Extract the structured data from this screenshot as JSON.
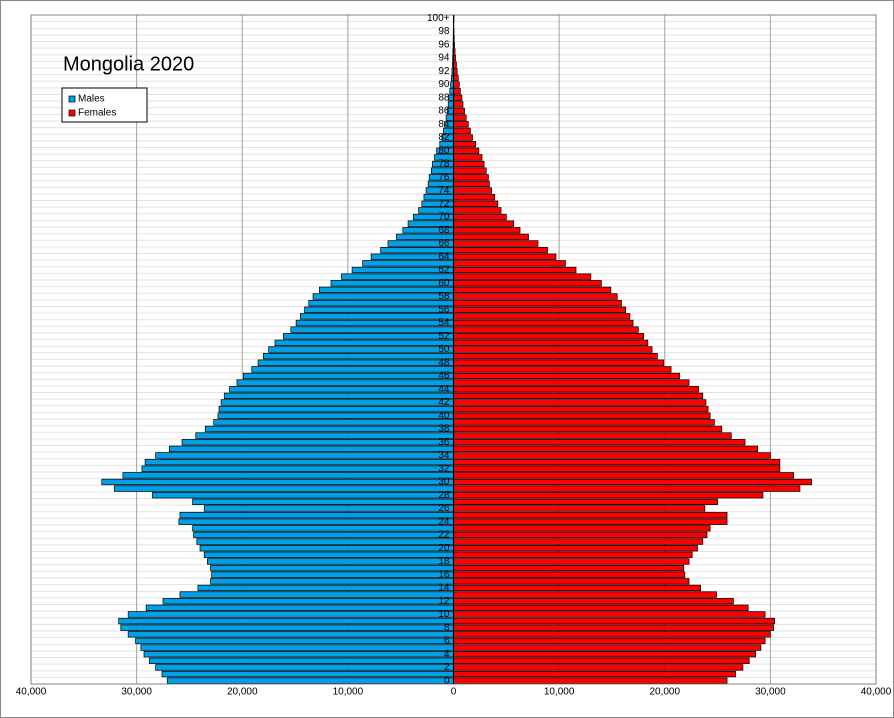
{
  "chart_data": {
    "type": "pyramid",
    "title": "Mongolia 2020",
    "categories": [
      "0",
      null,
      "2",
      null,
      "4",
      null,
      "6",
      null,
      "8",
      null,
      "10",
      null,
      "12",
      null,
      "14",
      null,
      "16",
      null,
      "18",
      null,
      "20",
      null,
      "22",
      null,
      "24",
      null,
      "26",
      null,
      "28",
      null,
      "30",
      null,
      "32",
      null,
      "34",
      null,
      "36",
      null,
      "38",
      null,
      "40",
      null,
      "42",
      null,
      "44",
      null,
      "46",
      null,
      "48",
      null,
      "50",
      null,
      "52",
      null,
      "54",
      null,
      "56",
      null,
      "58",
      null,
      "60",
      null,
      "62",
      null,
      "64",
      null,
      "66",
      null,
      "68",
      null,
      "70",
      null,
      "72",
      null,
      "74",
      null,
      "76",
      null,
      "78",
      null,
      "80",
      null,
      "82",
      null,
      "84",
      null,
      "86",
      null,
      "88",
      null,
      "90",
      null,
      "92",
      null,
      "94",
      null,
      "96",
      null,
      "98",
      null,
      "100+"
    ],
    "series": [
      {
        "name": "Males",
        "color": "#00a0e8",
        "side": "left",
        "values": [
          27100,
          27600,
          28200,
          28800,
          29300,
          29600,
          30100,
          30800,
          31500,
          31700,
          30800,
          29100,
          27500,
          25900,
          24200,
          23000,
          22900,
          23000,
          23300,
          23600,
          24000,
          24300,
          24600,
          24700,
          26000,
          25900,
          23600,
          24700,
          28500,
          32100,
          33300,
          31300,
          29500,
          29200,
          28200,
          26900,
          25700,
          24400,
          23500,
          22700,
          22300,
          22200,
          22000,
          21700,
          21200,
          20500,
          19900,
          19100,
          18500,
          18000,
          17500,
          16900,
          16100,
          15400,
          14900,
          14500,
          14100,
          13700,
          13300,
          12700,
          11600,
          10600,
          9600,
          8600,
          7800,
          6900,
          6200,
          5400,
          4800,
          4300,
          3800,
          3300,
          3000,
          2800,
          2600,
          2400,
          2300,
          2100,
          2000,
          1800,
          1600,
          1300,
          1100,
          950,
          850,
          700,
          600,
          500,
          450,
          350,
          280,
          200,
          150,
          100,
          80,
          60,
          40,
          30,
          20,
          10,
          20
        ]
      },
      {
        "name": "Females",
        "color": "#ff0000",
        "side": "right",
        "values": [
          25900,
          26700,
          27400,
          28000,
          28600,
          29100,
          29500,
          30000,
          30300,
          30400,
          29500,
          27900,
          26500,
          24900,
          23400,
          22300,
          21900,
          21800,
          22300,
          22600,
          23100,
          23600,
          24000,
          24300,
          25900,
          25900,
          23800,
          25000,
          29300,
          32800,
          33900,
          32200,
          30900,
          30900,
          30000,
          28800,
          27600,
          26300,
          25400,
          24700,
          24300,
          24100,
          23900,
          23600,
          23200,
          22300,
          21400,
          20600,
          19900,
          19300,
          18800,
          18400,
          18000,
          17500,
          17000,
          16700,
          16300,
          15900,
          15500,
          14900,
          14000,
          13000,
          11600,
          10600,
          9700,
          8900,
          8000,
          7100,
          6300,
          5700,
          5000,
          4500,
          4200,
          3900,
          3600,
          3400,
          3300,
          3100,
          2900,
          2700,
          2400,
          2100,
          1800,
          1600,
          1400,
          1200,
          1050,
          900,
          800,
          650,
          550,
          450,
          350,
          280,
          200,
          150,
          100,
          70,
          50,
          30,
          50
        ]
      }
    ],
    "xlim": [
      -40000,
      40000
    ],
    "xticks": [
      {
        "value": -40000,
        "label": "40,000"
      },
      {
        "value": -30000,
        "label": "30,000"
      },
      {
        "value": -20000,
        "label": "20,000"
      },
      {
        "value": -10000,
        "label": "10,000"
      },
      0,
      {
        "value": 10000,
        "label": "10,000"
      },
      {
        "value": 20000,
        "label": "20,000"
      },
      {
        "value": 30000,
        "label": "30,000"
      },
      {
        "value": 40000,
        "label": "40,000"
      }
    ],
    "grid": true,
    "legend": "upper-left"
  }
}
